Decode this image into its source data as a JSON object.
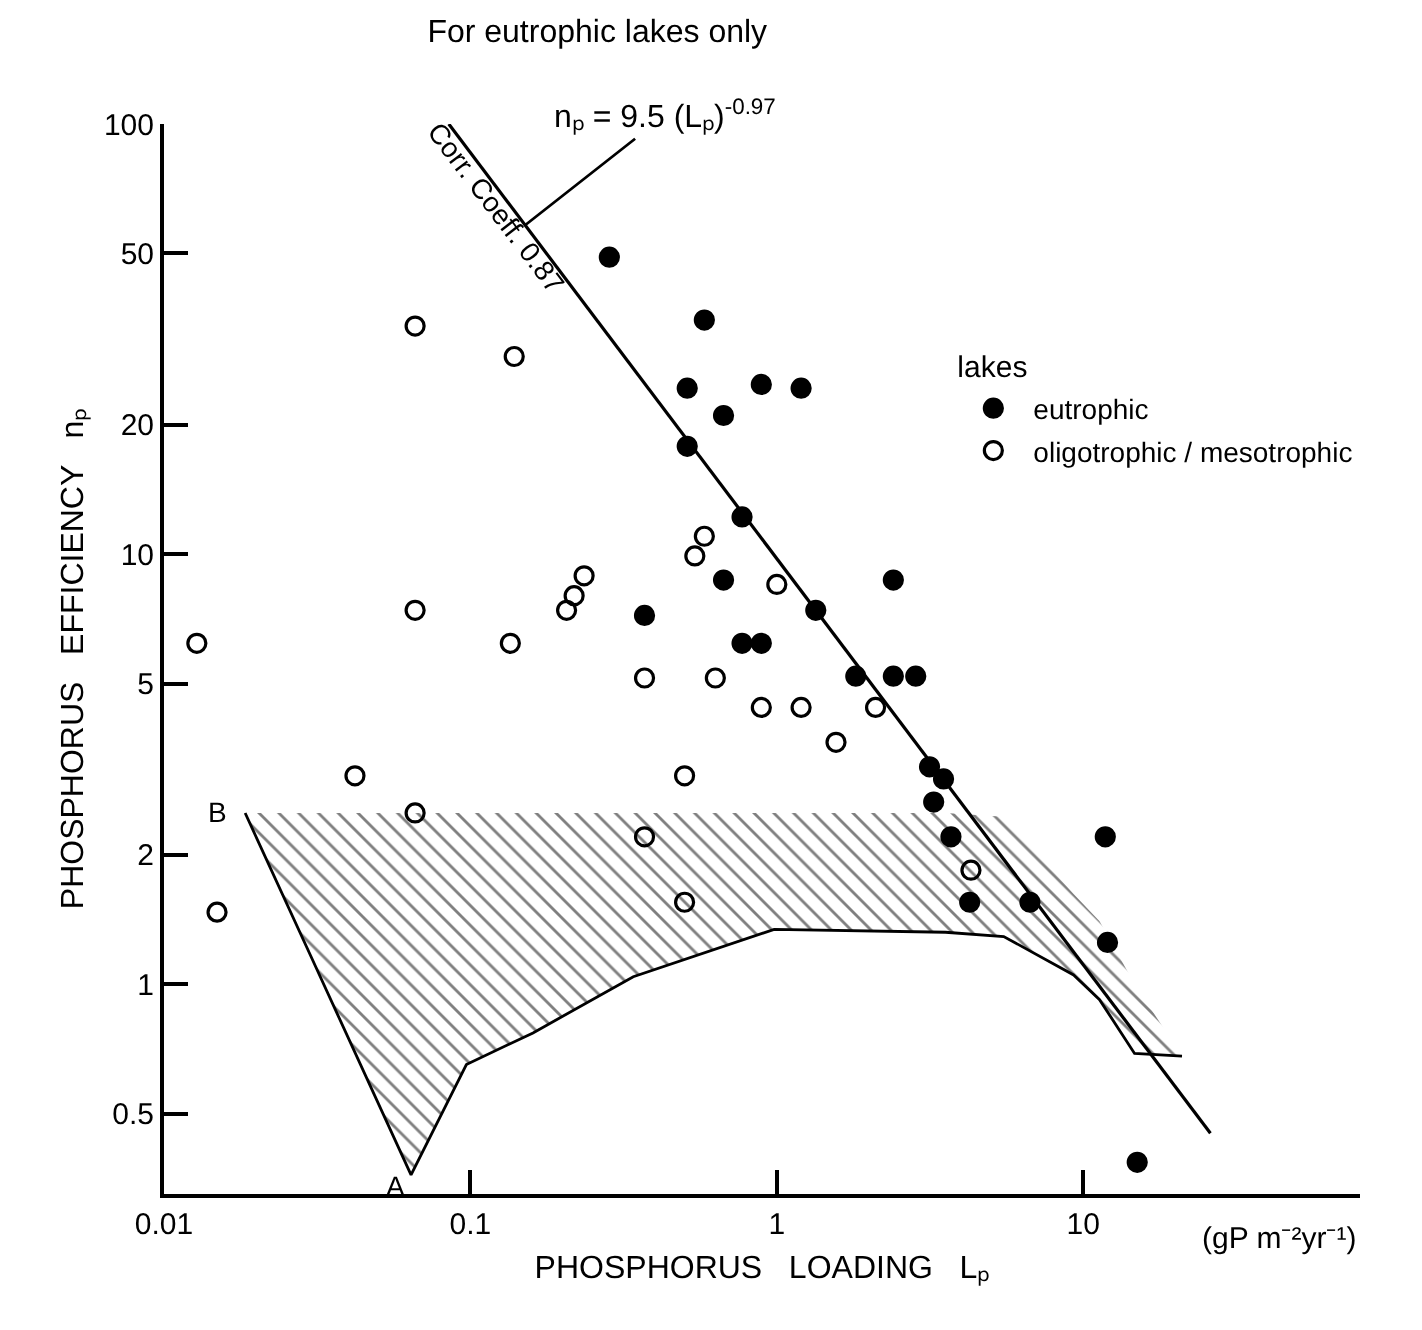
{
  "chart_data": {
    "type": "scatter",
    "title": "For eutrophic lakes only",
    "xlabel": "PHOSPHORUS   LOADING   Lₚ",
    "ylabel": "PHOSPHORUS   EFFICIENCY   nₚ",
    "legend_title": "lakes",
    "log": "xy",
    "xlim": [
      0.01,
      80
    ],
    "xticks": [
      0.01,
      0.1,
      1,
      10
    ],
    "ylim": [
      0.325,
      100
    ],
    "yticks": [
      0.5,
      1,
      2,
      5,
      10,
      20,
      50,
      100
    ],
    "legend": "right",
    "series": [
      {
        "name": "eutrophic",
        "color": "#000000",
        "marker": "circle",
        "x": [
          0.284,
          0.58,
          0.51,
          0.51,
          0.67,
          0.89,
          1.2,
          0.77,
          0.67,
          2.4,
          1.34,
          0.77,
          0.89,
          0.37,
          1.81,
          2.4,
          2.84,
          3.15,
          3.5,
          3.25,
          3.7,
          4.26,
          6.7,
          11.8,
          12.0,
          15.0
        ],
        "values": [
          49,
          35,
          24.3,
          17.8,
          21,
          24.8,
          24.3,
          12.2,
          8.7,
          8.7,
          7.4,
          6.2,
          6.2,
          7.2,
          5.2,
          5.2,
          5.2,
          3.2,
          3.0,
          2.65,
          2.2,
          1.55,
          1.55,
          2.2,
          1.25,
          0.385
        ]
      },
      {
        "name": "oligotrophic / mesotrophic",
        "color": "#000000",
        "marker": "circle-open",
        "x": [
          0.0128,
          0.0149,
          0.042,
          0.066,
          0.066,
          0.066,
          0.135,
          0.139,
          0.206,
          0.218,
          0.235,
          0.37,
          0.37,
          0.5,
          0.5,
          0.54,
          0.58,
          0.63,
          0.89,
          1.0,
          1.2,
          1.56,
          2.1,
          4.3
        ],
        "values": [
          6.2,
          1.47,
          3.05,
          33.9,
          7.4,
          2.5,
          6.2,
          28.8,
          7.4,
          8.0,
          8.9,
          2.2,
          5.15,
          3.05,
          1.55,
          9.9,
          11,
          5.15,
          4.4,
          8.5,
          4.4,
          3.65,
          4.4,
          1.84
        ]
      },
      {
        "type": "line",
        "color": "#000000",
        "line_style": "solid",
        "x": [
          0.085,
          26
        ],
        "values": [
          100,
          0.45
        ]
      },
      {
        "type": "line",
        "color": "#000000",
        "line_style": "solid",
        "x": [
          0.0184,
          0.03,
          0.064,
          0.097,
          0.16,
          0.34,
          0.98,
          3.55,
          5.5,
          9.3,
          11.3,
          14.7,
          21
        ],
        "values": [
          2.5,
          1.17,
          0.36,
          0.65,
          0.77,
          1.04,
          1.34,
          1.32,
          1.29,
          1.05,
          0.92,
          0.69,
          0.68
        ],
        "upper": [
          2.5,
          2.5,
          2.5,
          2.5,
          2.5,
          2.5,
          2.5,
          2.5,
          2.45,
          1.62,
          1.4,
          1.0,
          0.68
        ],
        "lower": [
          2.5,
          1.17,
          0.36,
          0.65,
          0.77,
          1.04,
          1.34,
          1.32,
          1.29,
          1.05,
          0.92,
          0.69,
          0.68
        ]
      }
    ],
    "annotations": [
      {
        "text": "nₚ = 9.5 (Lₚ)$^{-0.97}$",
        "x": 0.15,
        "y": 58
      },
      {
        "text": "Corr. Coeff. 0.87",
        "x": 0.16,
        "y": 55
      },
      {
        "text": "A",
        "x": 0.064,
        "y": 0.36
      },
      {
        "text": "B",
        "x": 0.0184,
        "y": 2.5
      },
      "(gP m⁻²yr⁻¹)"
    ]
  }
}
